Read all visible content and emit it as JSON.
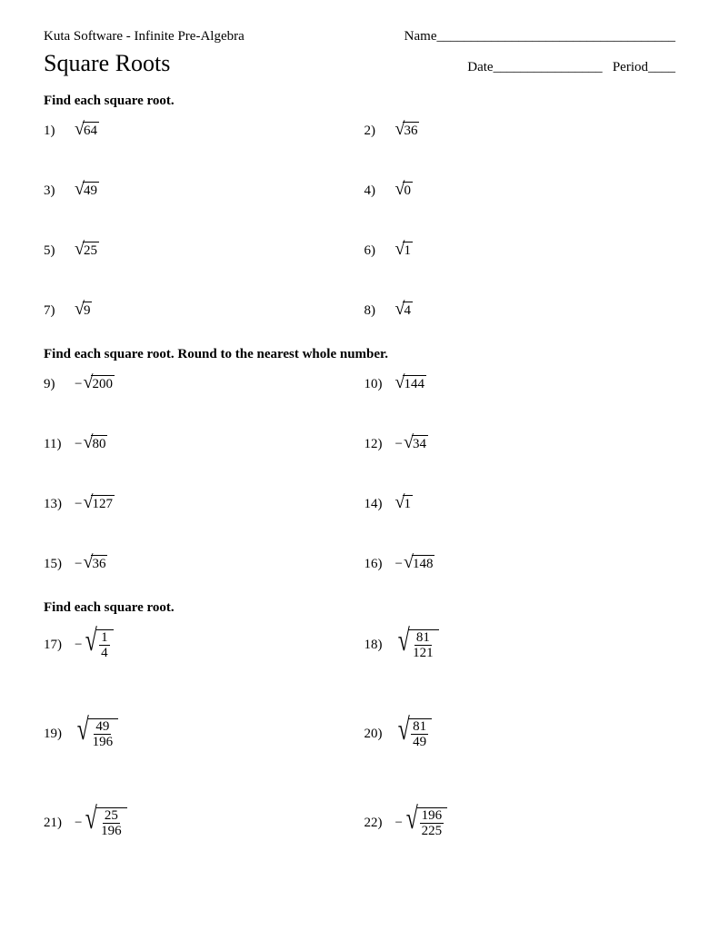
{
  "header": {
    "software": "Kuta Software - Infinite Pre-Algebra",
    "name_label": "Name___________________________________",
    "date_label": "Date________________",
    "period_label": "Period____"
  },
  "title": "Square Roots",
  "sections": [
    {
      "instruction": "Find each square root.",
      "frac": false,
      "problems": [
        {
          "n": "1)",
          "neg": false,
          "val": "64"
        },
        {
          "n": "2)",
          "neg": false,
          "val": "36"
        },
        {
          "n": "3)",
          "neg": false,
          "val": "49"
        },
        {
          "n": "4)",
          "neg": false,
          "val": "0"
        },
        {
          "n": "5)",
          "neg": false,
          "val": "25"
        },
        {
          "n": "6)",
          "neg": false,
          "val": "1"
        },
        {
          "n": "7)",
          "neg": false,
          "val": "9"
        },
        {
          "n": "8)",
          "neg": false,
          "val": "4"
        }
      ]
    },
    {
      "instruction": "Find each square root.  Round to the nearest whole number.",
      "frac": false,
      "problems": [
        {
          "n": "9)",
          "neg": true,
          "val": "200"
        },
        {
          "n": "10)",
          "neg": false,
          "val": "144"
        },
        {
          "n": "11)",
          "neg": true,
          "val": "80"
        },
        {
          "n": "12)",
          "neg": true,
          "val": "34"
        },
        {
          "n": "13)",
          "neg": true,
          "val": "127"
        },
        {
          "n": "14)",
          "neg": false,
          "val": "1"
        },
        {
          "n": "15)",
          "neg": true,
          "val": "36"
        },
        {
          "n": "16)",
          "neg": true,
          "val": "148"
        }
      ]
    },
    {
      "instruction": "Find each square root.",
      "frac": true,
      "problems": [
        {
          "n": "17)",
          "neg": true,
          "num": "1",
          "den": "4"
        },
        {
          "n": "18)",
          "neg": false,
          "num": "81",
          "den": "121"
        },
        {
          "n": "19)",
          "neg": false,
          "num": "49",
          "den": "196"
        },
        {
          "n": "20)",
          "neg": false,
          "num": "81",
          "den": "49"
        },
        {
          "n": "21)",
          "neg": true,
          "num": "25",
          "den": "196"
        },
        {
          "n": "22)",
          "neg": true,
          "num": "196",
          "den": "225"
        }
      ]
    }
  ]
}
